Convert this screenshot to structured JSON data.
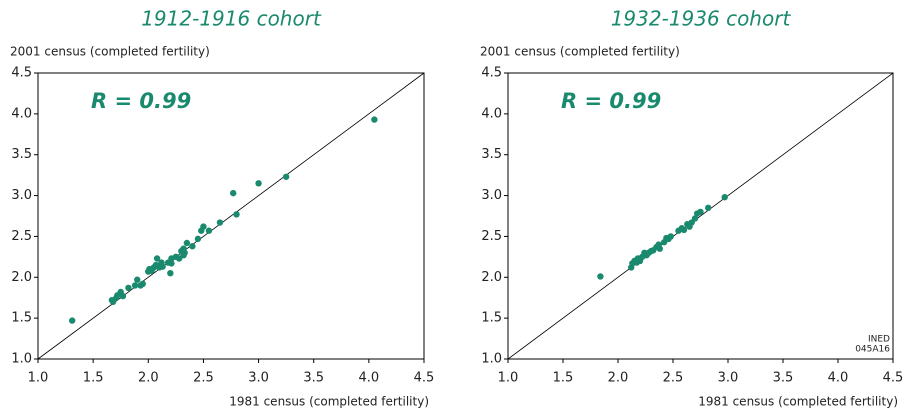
{
  "chart_data": [
    {
      "type": "scatter",
      "title": "1912-1916 cohort",
      "ylabel": "2001 census (completed fertility)",
      "xlabel": "1981 census (completed fertility)",
      "annotation": "R = 0.99",
      "color": "#1a8a6e",
      "xlim": [
        1.0,
        4.5
      ],
      "ylim": [
        1.0,
        4.5
      ],
      "xticks": [
        {
          "value": 1,
          "label": "1.0"
        },
        1.5,
        {
          "value": 2,
          "label": "2.0"
        },
        2.5,
        {
          "value": 3,
          "label": "3.0"
        },
        3.5,
        {
          "value": 4,
          "label": "4.0"
        },
        4.5
      ],
      "yticks": [
        {
          "value": 1,
          "label": "1.0"
        },
        1.5,
        {
          "value": 2,
          "label": "2.0"
        },
        2.5,
        {
          "value": 3,
          "label": "3.0"
        },
        3.5,
        {
          "value": 4,
          "label": "4.0"
        },
        4.5
      ],
      "x": [
        1.31,
        1.67,
        1.68,
        1.71,
        1.72,
        1.75,
        1.77,
        1.82,
        1.88,
        1.9,
        1.93,
        1.95,
        2.0,
        2.01,
        2.03,
        2.05,
        2.07,
        2.08,
        2.1,
        2.12,
        2.13,
        2.18,
        2.2,
        2.21,
        2.21,
        2.25,
        2.28,
        2.3,
        2.32,
        2.32,
        2.33,
        2.35,
        2.4,
        2.45,
        2.48,
        2.5,
        2.55,
        2.65,
        2.77,
        2.8,
        3.0,
        3.25,
        4.05
      ],
      "y": [
        1.47,
        1.72,
        1.7,
        1.75,
        1.78,
        1.82,
        1.77,
        1.87,
        1.9,
        1.97,
        1.9,
        1.92,
        2.07,
        2.1,
        2.08,
        2.12,
        2.15,
        2.23,
        2.12,
        2.18,
        2.13,
        2.18,
        2.05,
        2.17,
        2.23,
        2.25,
        2.23,
        2.32,
        2.35,
        2.27,
        2.3,
        2.42,
        2.38,
        2.47,
        2.57,
        2.62,
        2.57,
        2.67,
        3.03,
        2.77,
        3.15,
        3.23,
        3.93
      ]
    },
    {
      "type": "scatter",
      "title": "1932-1936 cohort",
      "ylabel": "2001 census (completed fertility)",
      "xlabel": "1981 census (completed fertility)",
      "annotation": "R = 0.99",
      "note": [
        "INED",
        "045A16"
      ],
      "color": "#1a8a6e",
      "xlim": [
        1.0,
        4.5
      ],
      "ylim": [
        1.0,
        4.5
      ],
      "xticks": [
        {
          "value": 1,
          "label": "1.0"
        },
        1.5,
        {
          "value": 2,
          "label": "2.0"
        },
        2.5,
        {
          "value": 3,
          "label": "3.0"
        },
        3.5,
        {
          "value": 4,
          "label": "4.0"
        },
        4.5
      ],
      "yticks": [
        {
          "value": 1,
          "label": "1.0"
        },
        1.5,
        {
          "value": 2,
          "label": "2.0"
        },
        2.5,
        {
          "value": 3,
          "label": "3.0"
        },
        3.5,
        {
          "value": 4,
          "label": "4.0"
        },
        4.5
      ],
      "x": [
        1.84,
        2.12,
        2.13,
        2.15,
        2.17,
        2.18,
        2.2,
        2.22,
        2.24,
        2.26,
        2.28,
        2.3,
        2.32,
        2.35,
        2.37,
        2.38,
        2.42,
        2.44,
        2.46,
        2.48,
        2.55,
        2.58,
        2.6,
        2.63,
        2.65,
        2.67,
        2.7,
        2.72,
        2.75,
        2.82,
        2.97
      ],
      "y": [
        2.01,
        2.12,
        2.17,
        2.2,
        2.18,
        2.23,
        2.2,
        2.25,
        2.3,
        2.27,
        2.3,
        2.32,
        2.33,
        2.37,
        2.4,
        2.35,
        2.43,
        2.48,
        2.47,
        2.5,
        2.57,
        2.6,
        2.58,
        2.65,
        2.62,
        2.67,
        2.72,
        2.78,
        2.8,
        2.85,
        2.98
      ]
    }
  ]
}
